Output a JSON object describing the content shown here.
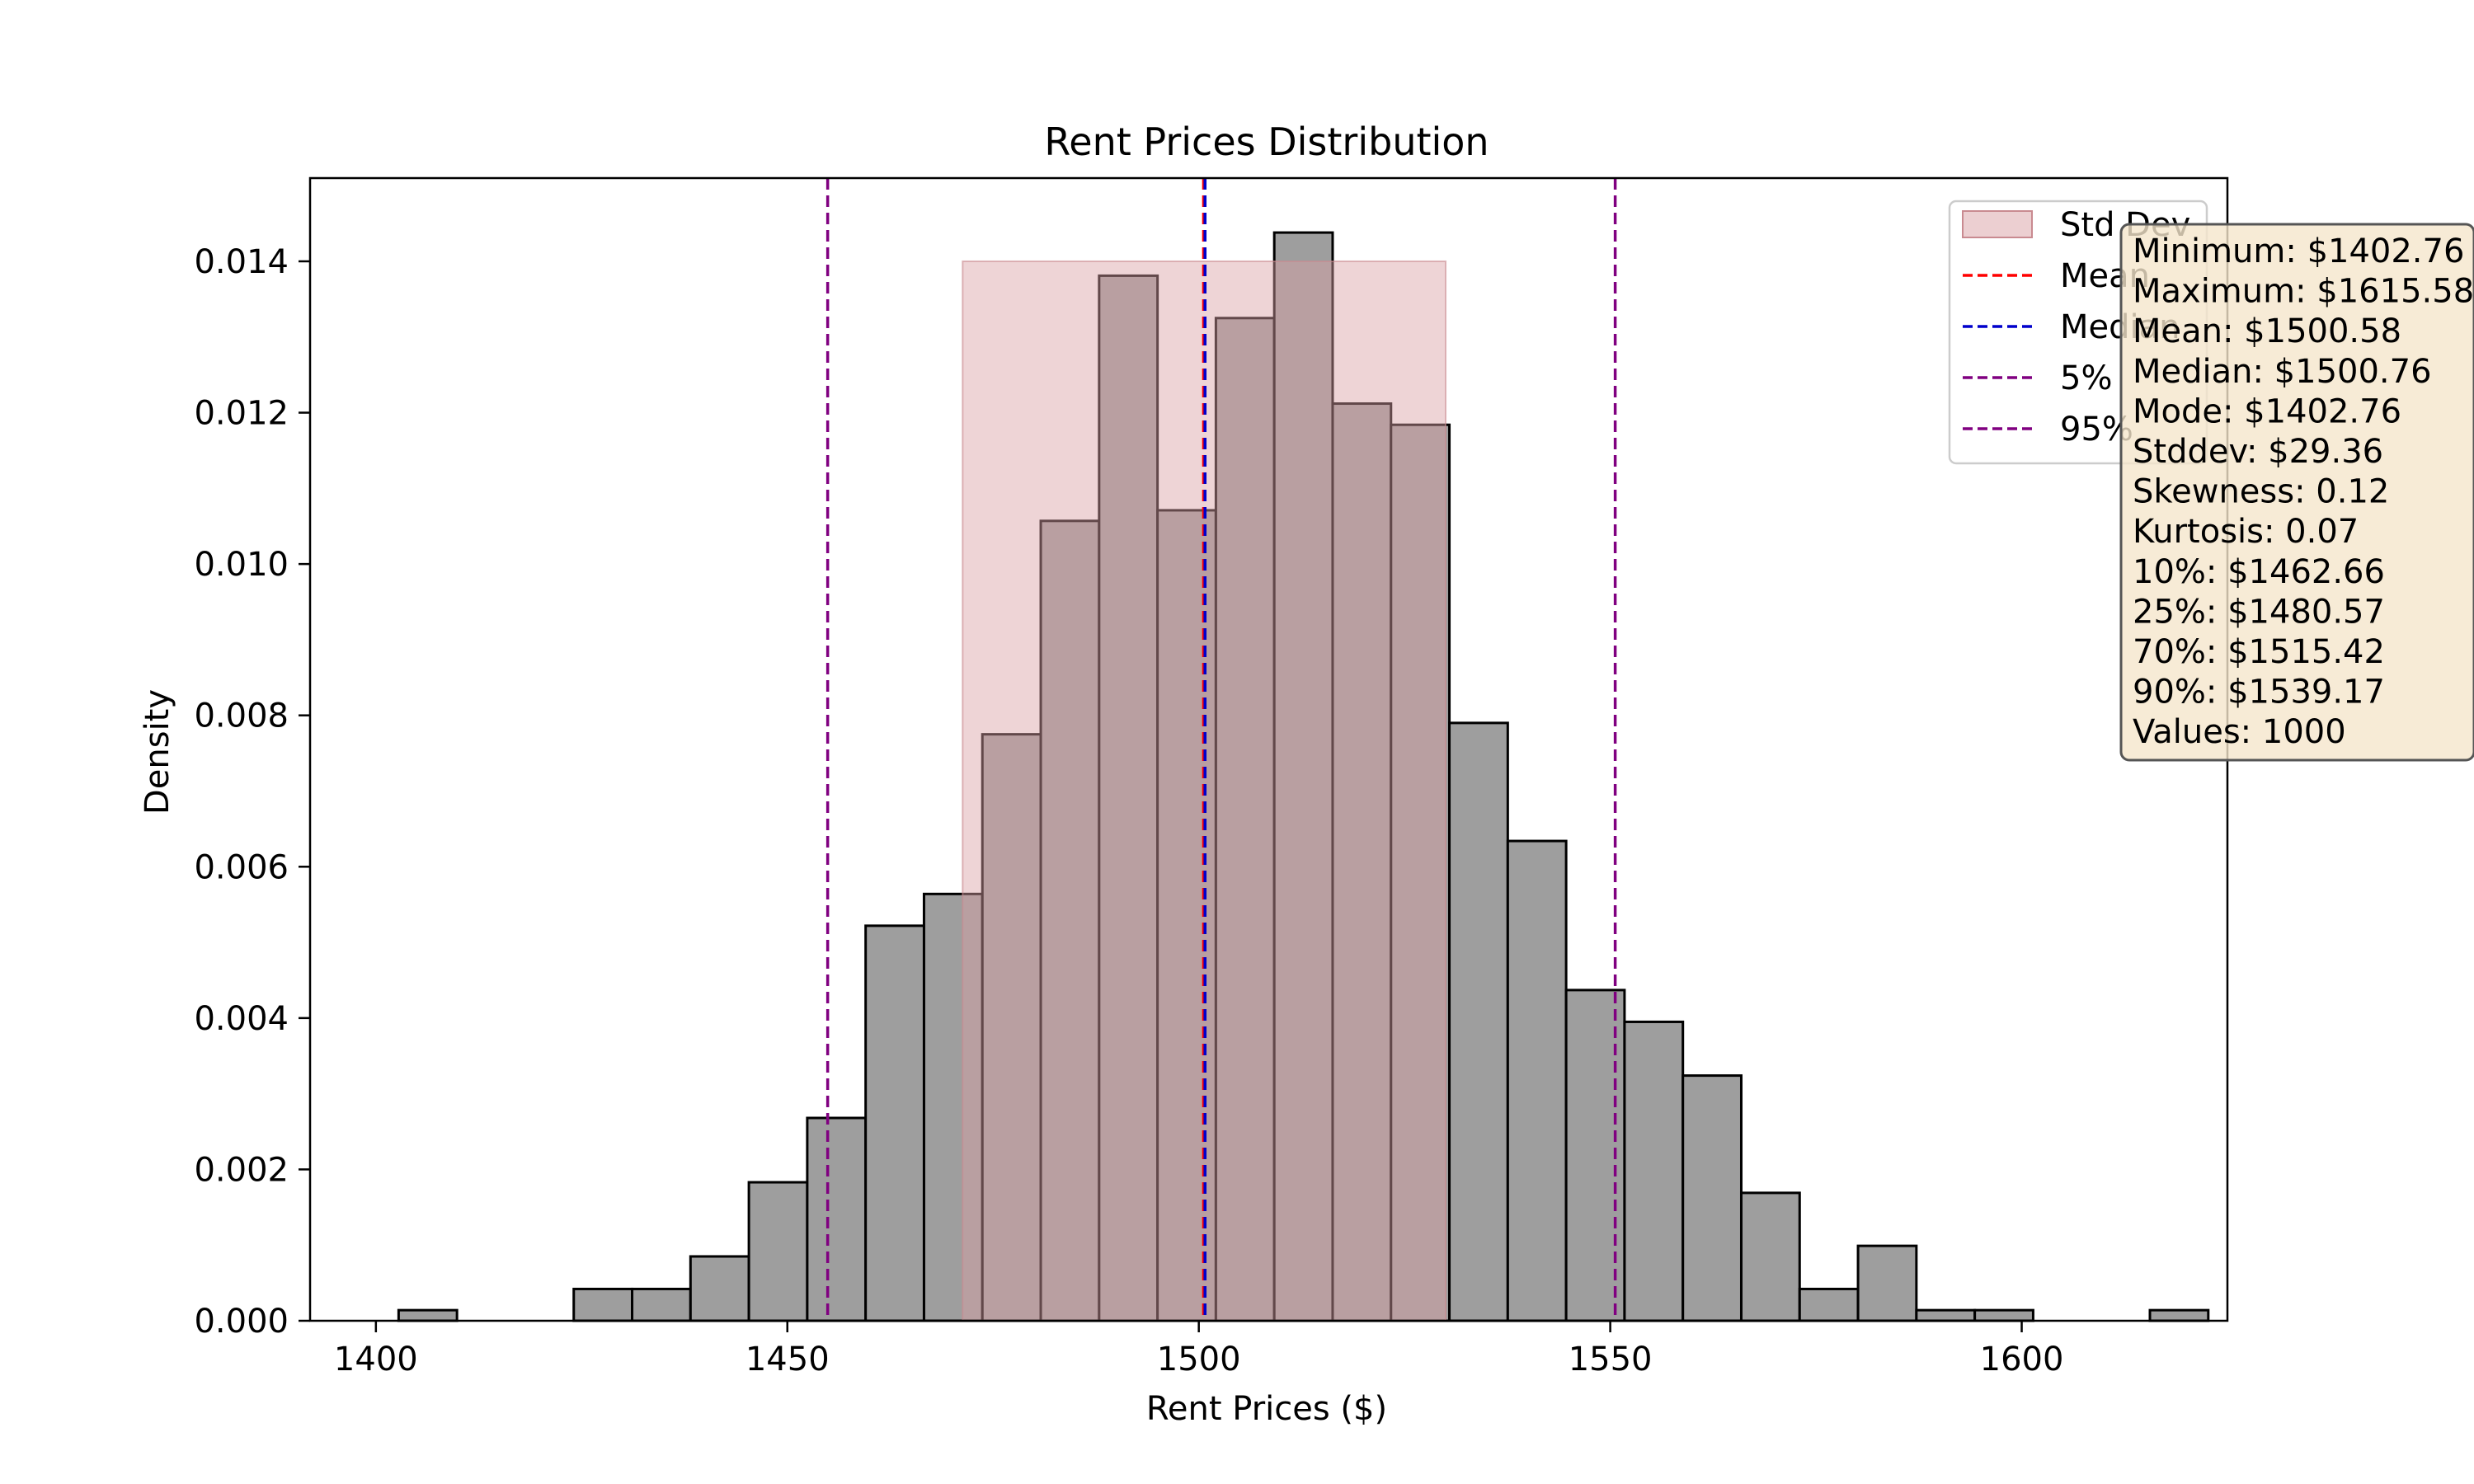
{
  "chart_data": {
    "type": "bar",
    "title": "Rent Prices Distribution",
    "xlabel": "Rent Prices ($)",
    "ylabel": "Density",
    "xlim": [
      1392,
      1625
    ],
    "ylim": [
      0,
      0.0151
    ],
    "x_ticks": [
      1400,
      1450,
      1500,
      1550,
      1600
    ],
    "y_ticks": [
      0,
      0.002,
      0.004,
      0.006,
      0.008,
      0.01,
      0.012,
      0.014
    ],
    "x_tick_labels": [
      "1400",
      "1450",
      "1500",
      "1550",
      "1600"
    ],
    "y_tick_labels": [
      "0.000",
      "0.002",
      "0.004",
      "0.006",
      "0.008",
      "0.010",
      "0.012",
      "0.014"
    ],
    "grid": false,
    "bin_start": 1402.76,
    "bin_width": 7.094,
    "densities": [
      0.00014,
      0,
      0,
      0.00042,
      0.00042,
      0.00085,
      0.00183,
      0.00268,
      0.00522,
      0.00564,
      0.00775,
      0.01057,
      0.01381,
      0.01071,
      0.01325,
      0.01438,
      0.01212,
      0.01184,
      0.0079,
      0.00634,
      0.00437,
      0.00395,
      0.00324,
      0.00169,
      0.00042,
      0.00099,
      0.00014,
      0.00014,
      0,
      0,
      0.00014
    ],
    "std_band": {
      "x0": 1471.3,
      "x1": 1530.0,
      "y": 0.014
    },
    "vlines": {
      "mean": 1500.58,
      "median": 1500.76,
      "p5": 1454.9,
      "p95": 1550.6
    },
    "legend": {
      "location": "upper-right",
      "entries": [
        {
          "label": "Std Dev",
          "kind": "patch",
          "color": "#d9a0a4"
        },
        {
          "label": "Mean",
          "kind": "dash",
          "color": "#ff0000"
        },
        {
          "label": "Median",
          "kind": "dash",
          "color": "#0000cc"
        },
        {
          "label": "5%",
          "kind": "dash",
          "color": "#800080"
        },
        {
          "label": "95%",
          "kind": "dash",
          "color": "#800080"
        }
      ]
    },
    "stats_box": [
      "Minimum: $1402.76",
      "Maximum: $1615.58",
      "Mean: $1500.58",
      "Median: $1500.76",
      "Mode: $1402.76",
      "Stddev: $29.36",
      "Skewness: 0.12",
      "Kurtosis: 0.07",
      "10%: $1462.66",
      "25%: $1480.57",
      "70%: $1515.42",
      "90%: $1539.17",
      "Values: 1000"
    ],
    "colors": {
      "bars": "#9e9e9e",
      "bar_edge": "#000000",
      "std_band": "#d9a0a4",
      "mean": "#ff0000",
      "median": "#0000cc",
      "percentile": "#800080",
      "stats_bg": "#f5e6cc"
    }
  }
}
